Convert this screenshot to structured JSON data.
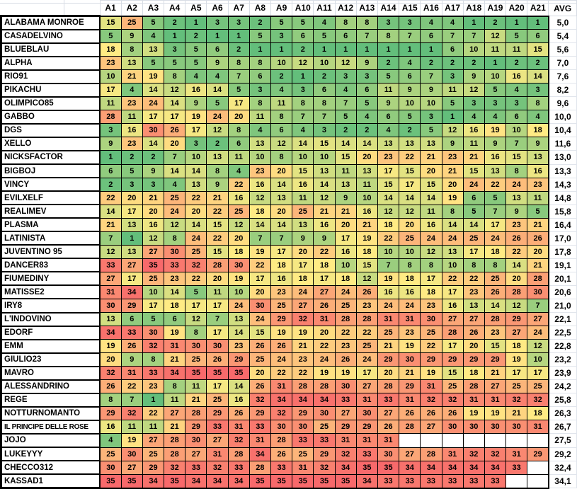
{
  "chart_data": {
    "type": "heatmap",
    "x_categories": [
      "A1",
      "A2",
      "A3",
      "A4",
      "A5",
      "A6",
      "A7",
      "A8",
      "A9",
      "A10",
      "A11",
      "A12",
      "A13",
      "A14",
      "A15",
      "A16",
      "A17",
      "A18",
      "A19",
      "A20",
      "A21"
    ],
    "corner_label": "",
    "avg_label": "AVG",
    "value_range": [
      1,
      35
    ],
    "color_scale": {
      "min_color": "#63BE7B",
      "mid_color": "#FFEB84",
      "max_color": "#F8696B",
      "min_value": 1,
      "mid_value": 18,
      "max_value": 35
    },
    "grid_color": "#000000",
    "gridline_gray": "#d7dce4",
    "rows": [
      {
        "name": "ALABAMA MONROE",
        "values": [
          15,
          25,
          5,
          2,
          1,
          3,
          3,
          2,
          5,
          5,
          4,
          8,
          8,
          3,
          3,
          4,
          4,
          1,
          2,
          1,
          1
        ],
        "avg": "5,0"
      },
      {
        "name": "CASADELVINO",
        "values": [
          5,
          9,
          4,
          1,
          2,
          1,
          1,
          5,
          3,
          6,
          5,
          6,
          7,
          8,
          7,
          6,
          7,
          7,
          12,
          5,
          6
        ],
        "avg": "5,4"
      },
      {
        "name": "BLUEBLAU",
        "values": [
          18,
          8,
          13,
          3,
          5,
          6,
          2,
          1,
          1,
          2,
          1,
          1,
          1,
          1,
          1,
          1,
          6,
          10,
          11,
          11,
          15
        ],
        "avg": "5,6"
      },
      {
        "name": "ALPHA",
        "values": [
          23,
          13,
          5,
          5,
          5,
          9,
          8,
          8,
          10,
          12,
          10,
          12,
          9,
          2,
          4,
          2,
          2,
          2,
          1,
          2,
          2
        ],
        "avg": "7,0"
      },
      {
        "name": "RIO91",
        "values": [
          10,
          21,
          19,
          8,
          4,
          4,
          7,
          6,
          2,
          1,
          2,
          3,
          3,
          5,
          6,
          7,
          3,
          9,
          10,
          16,
          14
        ],
        "avg": "7,6"
      },
      {
        "name": "PIKACHU",
        "values": [
          17,
          4,
          14,
          12,
          16,
          14,
          5,
          3,
          4,
          3,
          6,
          4,
          6,
          11,
          9,
          9,
          11,
          12,
          5,
          4,
          3
        ],
        "avg": "8,2"
      },
      {
        "name": "OLIMPICO85",
        "values": [
          11,
          23,
          24,
          14,
          9,
          5,
          17,
          8,
          11,
          8,
          8,
          7,
          5,
          9,
          10,
          10,
          5,
          3,
          3,
          3,
          8
        ],
        "avg": "9,6"
      },
      {
        "name": "GABBO",
        "values": [
          28,
          11,
          17,
          17,
          19,
          24,
          20,
          11,
          8,
          7,
          7,
          5,
          4,
          6,
          5,
          3,
          1,
          4,
          4,
          6,
          4
        ],
        "avg": "10,0"
      },
      {
        "name": "DGS",
        "values": [
          3,
          16,
          30,
          26,
          17,
          12,
          8,
          4,
          6,
          4,
          3,
          2,
          2,
          4,
          2,
          5,
          12,
          16,
          19,
          10,
          18
        ],
        "avg": "10,4"
      },
      {
        "name": "XELLO",
        "values": [
          9,
          23,
          14,
          20,
          3,
          2,
          6,
          13,
          12,
          14,
          15,
          14,
          14,
          13,
          13,
          13,
          9,
          11,
          9,
          7,
          9
        ],
        "avg": "11,6"
      },
      {
        "name": "NICKSFACTOR",
        "values": [
          1,
          2,
          2,
          7,
          10,
          13,
          11,
          10,
          8,
          10,
          10,
          15,
          20,
          23,
          22,
          21,
          23,
          21,
          16,
          15,
          13
        ],
        "avg": "13,0"
      },
      {
        "name": "BIGBOJ",
        "values": [
          6,
          5,
          9,
          14,
          14,
          8,
          4,
          23,
          20,
          15,
          13,
          11,
          13,
          17,
          15,
          20,
          21,
          15,
          13,
          8,
          16
        ],
        "avg": "13,3"
      },
      {
        "name": "VINCY",
        "values": [
          2,
          3,
          3,
          4,
          13,
          9,
          22,
          16,
          14,
          16,
          14,
          13,
          11,
          15,
          17,
          15,
          20,
          24,
          22,
          24,
          23
        ],
        "avg": "14,3"
      },
      {
        "name": "EVILXELF",
        "values": [
          22,
          20,
          21,
          25,
          22,
          21,
          16,
          12,
          13,
          11,
          12,
          9,
          10,
          14,
          14,
          14,
          19,
          6,
          5,
          13,
          11
        ],
        "avg": "14,8"
      },
      {
        "name": "REALIMEV",
        "values": [
          14,
          17,
          20,
          24,
          20,
          22,
          25,
          18,
          20,
          25,
          21,
          21,
          16,
          12,
          12,
          11,
          8,
          5,
          7,
          9,
          5
        ],
        "avg": "15,8"
      },
      {
        "name": "PLASMA",
        "values": [
          21,
          13,
          16,
          12,
          14,
          15,
          12,
          14,
          14,
          13,
          16,
          20,
          21,
          18,
          20,
          16,
          14,
          14,
          17,
          23,
          21
        ],
        "avg": "16,4"
      },
      {
        "name": "LATINISTA",
        "values": [
          7,
          1,
          12,
          8,
          24,
          22,
          20,
          7,
          7,
          9,
          9,
          17,
          19,
          22,
          25,
          24,
          24,
          25,
          24,
          26,
          26
        ],
        "avg": "17,0"
      },
      {
        "name": "JUVENTINO 95",
        "values": [
          12,
          13,
          27,
          30,
          25,
          15,
          18,
          19,
          17,
          20,
          22,
          16,
          18,
          10,
          10,
          12,
          13,
          17,
          18,
          22,
          20
        ],
        "avg": "17,8"
      },
      {
        "name": "DANCER83",
        "values": [
          33,
          27,
          35,
          33,
          32,
          28,
          30,
          22,
          18,
          17,
          18,
          10,
          15,
          7,
          8,
          8,
          10,
          8,
          8,
          14,
          21
        ],
        "avg": "19,1"
      },
      {
        "name": "FIUMEDINY",
        "values": [
          27,
          17,
          25,
          23,
          22,
          20,
          19,
          17,
          16,
          18,
          17,
          18,
          12,
          19,
          18,
          17,
          22,
          22,
          25,
          20,
          28
        ],
        "avg": "20,1"
      },
      {
        "name": "MATISSE2",
        "values": [
          31,
          34,
          10,
          14,
          5,
          11,
          10,
          20,
          23,
          24,
          27,
          24,
          26,
          16,
          16,
          18,
          17,
          23,
          26,
          28,
          30
        ],
        "avg": "20,6"
      },
      {
        "name": "IRY8",
        "values": [
          30,
          29,
          17,
          18,
          17,
          17,
          24,
          30,
          25,
          27,
          26,
          25,
          23,
          24,
          24,
          23,
          16,
          13,
          14,
          12,
          7
        ],
        "avg": "21,0"
      },
      {
        "name": "L'INDOVINO",
        "values": [
          13,
          6,
          5,
          6,
          12,
          7,
          13,
          24,
          29,
          32,
          31,
          28,
          28,
          31,
          31,
          30,
          27,
          27,
          28,
          29,
          27
        ],
        "avg": "22,1"
      },
      {
        "name": "EDORF",
        "values": [
          34,
          33,
          30,
          19,
          8,
          17,
          14,
          15,
          19,
          19,
          20,
          22,
          22,
          25,
          23,
          25,
          28,
          26,
          23,
          27,
          24
        ],
        "avg": "22,5"
      },
      {
        "name": "EMM",
        "values": [
          19,
          26,
          32,
          31,
          30,
          30,
          23,
          26,
          26,
          21,
          22,
          23,
          25,
          21,
          19,
          22,
          17,
          20,
          15,
          18,
          12
        ],
        "avg": "22,8"
      },
      {
        "name": "GIULIO23",
        "values": [
          20,
          9,
          8,
          21,
          25,
          26,
          29,
          25,
          24,
          23,
          24,
          26,
          24,
          29,
          30,
          29,
          29,
          29,
          29,
          19,
          10
        ],
        "avg": "23,2"
      },
      {
        "name": "MAVRO",
        "values": [
          32,
          31,
          33,
          34,
          35,
          35,
          35,
          20,
          22,
          22,
          19,
          19,
          17,
          20,
          21,
          19,
          15,
          18,
          21,
          17,
          17
        ],
        "avg": "23,9"
      },
      {
        "name": "ALESSANDRINO",
        "values": [
          26,
          22,
          23,
          8,
          11,
          17,
          14,
          26,
          31,
          28,
          28,
          30,
          27,
          28,
          29,
          31,
          25,
          28,
          27,
          25,
          25
        ],
        "avg": "24,2"
      },
      {
        "name": "REGE",
        "values": [
          8,
          7,
          1,
          11,
          21,
          25,
          16,
          32,
          34,
          34,
          34,
          33,
          31,
          33,
          31,
          32,
          32,
          31,
          31,
          32,
          32
        ],
        "avg": "25,8"
      },
      {
        "name": "NOTTURNOMANTO",
        "values": [
          29,
          32,
          22,
          27,
          28,
          29,
          26,
          29,
          32,
          29,
          30,
          27,
          30,
          27,
          26,
          26,
          26,
          19,
          19,
          21,
          18
        ],
        "avg": "26,3"
      },
      {
        "name": "IL PRINCIPE DELLE ROSE",
        "values": [
          16,
          11,
          11,
          21,
          29,
          33,
          31,
          33,
          30,
          30,
          25,
          29,
          29,
          26,
          28,
          27,
          30,
          30,
          30,
          30,
          31
        ],
        "avg": "26,7"
      },
      {
        "name": "JOJO",
        "values": [
          4,
          19,
          27,
          28,
          30,
          27,
          32,
          31,
          28,
          33,
          33,
          31,
          31,
          31,
          null,
          null,
          null,
          null,
          null,
          null,
          null
        ],
        "avg": "27,5"
      },
      {
        "name": "LUKEYYY",
        "values": [
          25,
          30,
          25,
          28,
          27,
          31,
          28,
          34,
          26,
          25,
          29,
          32,
          33,
          30,
          27,
          28,
          31,
          32,
          32,
          31,
          29
        ],
        "avg": "29,2"
      },
      {
        "name": "CHECCO312",
        "values": [
          30,
          27,
          29,
          32,
          33,
          32,
          33,
          28,
          33,
          31,
          32,
          34,
          35,
          35,
          34,
          34,
          34,
          34,
          34,
          33,
          null
        ],
        "avg": "32,4"
      },
      {
        "name": "KASSAD1",
        "values": [
          35,
          35,
          34,
          35,
          34,
          34,
          34,
          35,
          35,
          35,
          35,
          35,
          34,
          33,
          33,
          33,
          33,
          33,
          33,
          null,
          null
        ],
        "avg": "34,1"
      }
    ]
  }
}
